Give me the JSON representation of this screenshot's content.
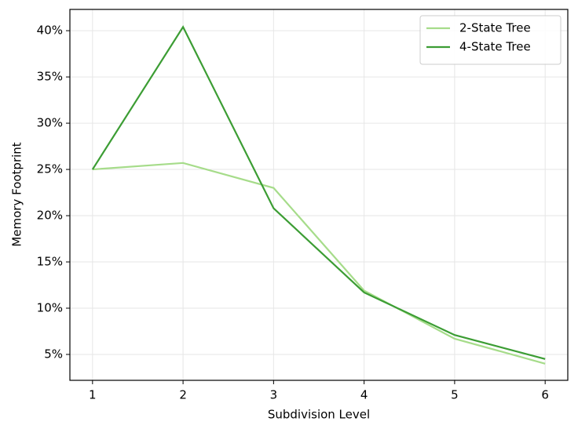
{
  "chart_data": {
    "type": "line",
    "xlabel": "Subdivision Level",
    "ylabel": "Memory Footprint",
    "x": [
      1,
      2,
      3,
      4,
      5,
      6
    ],
    "series": [
      {
        "name": "2-State Tree",
        "color": "#a6dc8a",
        "values": [
          25,
          25.7,
          23,
          11.9,
          6.7,
          4
        ]
      },
      {
        "name": "4-State Tree",
        "color": "#3c9d34",
        "values": [
          25,
          40.4,
          20.8,
          11.7,
          7.1,
          4.5
        ]
      }
    ],
    "xlim": [
      0.75,
      6.25
    ],
    "xticks": [
      1,
      2,
      3,
      4,
      5,
      6
    ],
    "ylim": [
      2.2,
      42.3
    ],
    "yticks": [
      {
        "value": 5,
        "label": "5%"
      },
      {
        "value": 10,
        "label": "10%"
      },
      {
        "value": 15,
        "label": "15%"
      },
      {
        "value": 20,
        "label": "20%"
      },
      {
        "value": 25,
        "label": "25%"
      },
      {
        "value": 30,
        "label": "30%"
      },
      {
        "value": 35,
        "label": "35%"
      },
      {
        "value": 40,
        "label": "40%"
      }
    ],
    "grid": true,
    "legend": "upper right"
  }
}
